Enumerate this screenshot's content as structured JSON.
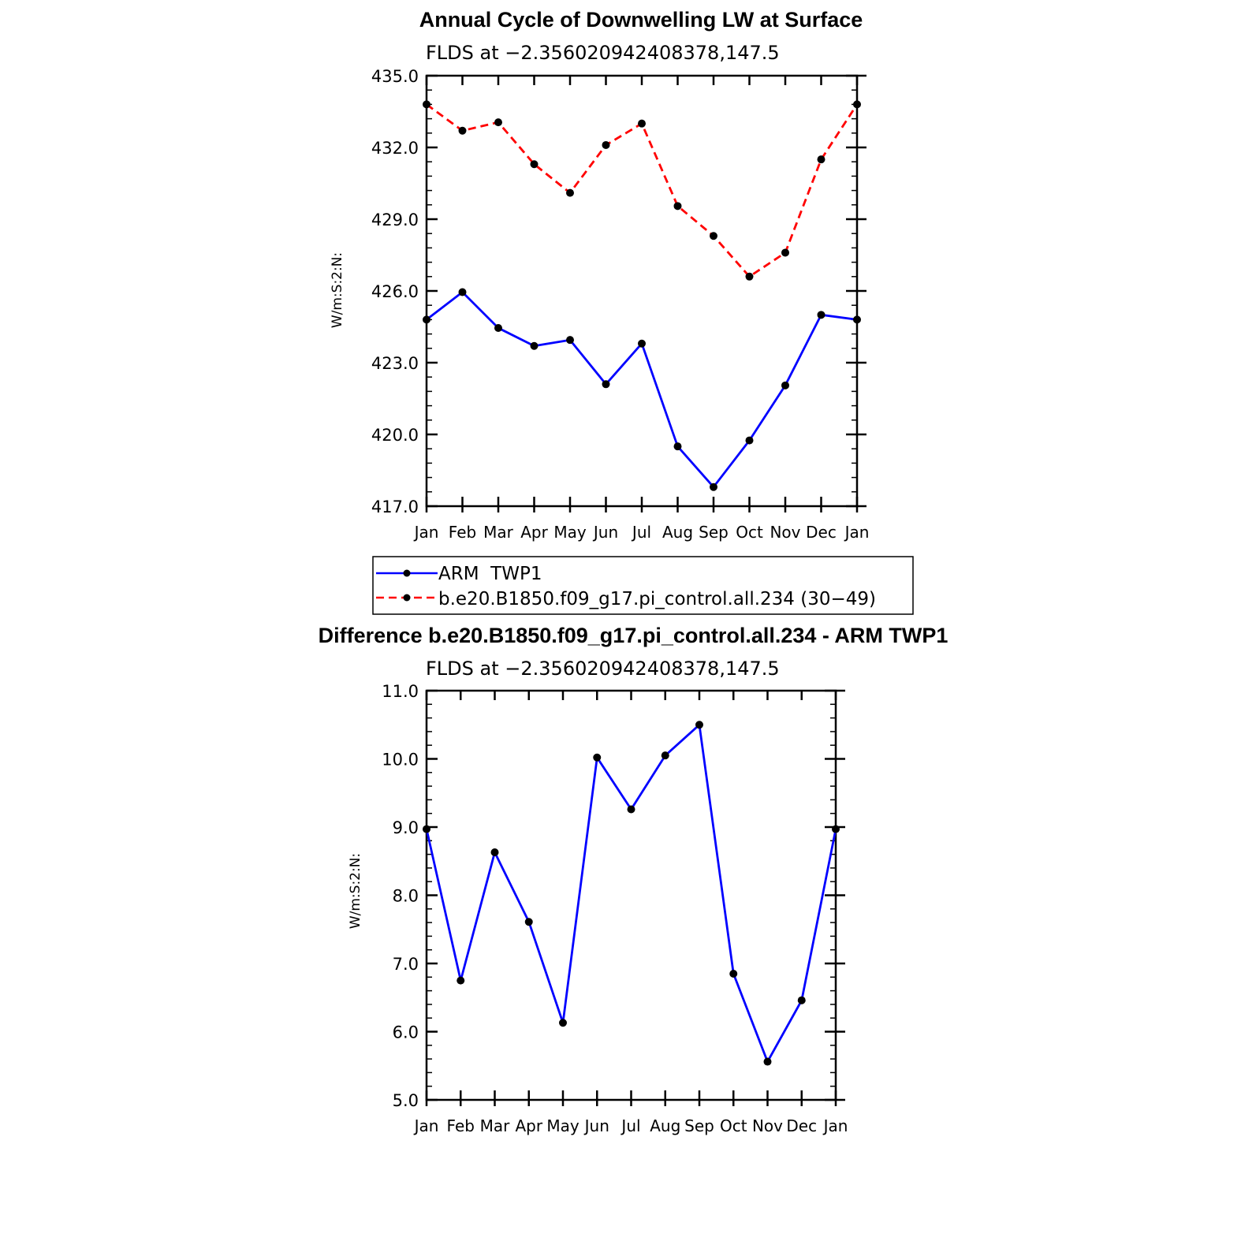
{
  "chart_data": [
    {
      "type": "line",
      "title": "Annual Cycle of Downwelling LW at Surface",
      "subtitle": "FLDS at −2.356020942408378,147.5",
      "xlabel": "",
      "ylabel": "W/m:S:2:N:",
      "categories": [
        "Jan",
        "Feb",
        "Mar",
        "Apr",
        "May",
        "Jun",
        "Jul",
        "Aug",
        "Sep",
        "Oct",
        "Nov",
        "Dec",
        "Jan"
      ],
      "ylim": [
        417.0,
        435.0
      ],
      "yticks": [
        "417.0",
        "420.0",
        "423.0",
        "426.0",
        "429.0",
        "432.0",
        "435.0"
      ],
      "grid": false,
      "legend_position": "bottom",
      "series": [
        {
          "name": "ARM  TWP1",
          "color": "#0000ff",
          "style": "solid",
          "values": [
            424.8,
            425.95,
            424.45,
            423.7,
            423.95,
            422.1,
            423.8,
            419.5,
            417.8,
            419.75,
            422.05,
            425.0,
            424.8
          ]
        },
        {
          "name": "b.e20.B1850.f09_g17.pi_control.all.234 (30−49)",
          "color": "#ff0000",
          "style": "dashed",
          "values": [
            433.8,
            432.7,
            433.05,
            431.3,
            430.1,
            432.1,
            433.0,
            429.55,
            428.3,
            426.6,
            427.6,
            431.5,
            433.8
          ]
        }
      ]
    },
    {
      "type": "line",
      "title": "Difference b.e20.B1850.f09_g17.pi_control.all.234 - ARM TWP1",
      "subtitle": "FLDS at −2.356020942408378,147.5",
      "xlabel": "",
      "ylabel": "W/m:S:2:N:",
      "categories": [
        "Jan",
        "Feb",
        "Mar",
        "Apr",
        "May",
        "Jun",
        "Jul",
        "Aug",
        "Sep",
        "Oct",
        "Nov",
        "Dec",
        "Jan"
      ],
      "ylim": [
        5.0,
        11.0
      ],
      "yticks": [
        "5.0",
        "6.0",
        "7.0",
        "8.0",
        "9.0",
        "10.0",
        "11.0"
      ],
      "grid": false,
      "series": [
        {
          "color": "#0000ff",
          "style": "solid",
          "values": [
            8.97,
            6.75,
            8.63,
            7.61,
            6.13,
            10.02,
            9.26,
            10.05,
            10.5,
            6.85,
            5.56,
            6.46,
            8.97
          ]
        }
      ]
    }
  ]
}
